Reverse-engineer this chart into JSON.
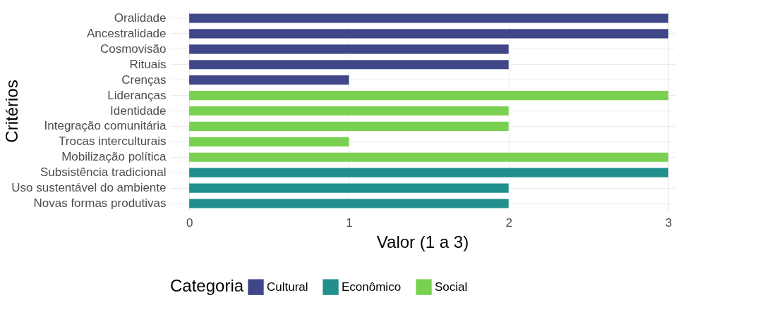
{
  "chart_data": {
    "type": "bar",
    "orientation": "horizontal",
    "xlabel": "Valor (1 a 3)",
    "ylabel": "Critérios",
    "legend_title": "Categoria",
    "legend": "bottom",
    "grid": true,
    "categories": [
      "Oralidade",
      "Ancestralidade",
      "Cosmovisão",
      "Rituais",
      "Crenças",
      "Lideranças",
      "Identidade",
      "Integração comunitária",
      "Trocas interculturais",
      "Mobilização política",
      "Subsistência tradicional",
      "Uso sustentável do ambiente",
      "Novas formas produtivas"
    ],
    "xlim": [
      -0.12,
      3.04
    ],
    "xticks": [
      0,
      1,
      2,
      3
    ],
    "series": [
      {
        "name": "Cultural",
        "color": "#3f4788",
        "values": [
          3,
          3,
          2,
          2,
          1,
          null,
          null,
          null,
          null,
          null,
          null,
          null,
          null
        ]
      },
      {
        "name": "Econômico",
        "color": "#21908d",
        "values": [
          null,
          null,
          null,
          null,
          null,
          null,
          null,
          null,
          null,
          null,
          3,
          2,
          2
        ]
      },
      {
        "name": "Social",
        "color": "#7ad151",
        "values": [
          null,
          null,
          null,
          null,
          null,
          3,
          2,
          2,
          1,
          3,
          null,
          null,
          null
        ]
      }
    ]
  }
}
